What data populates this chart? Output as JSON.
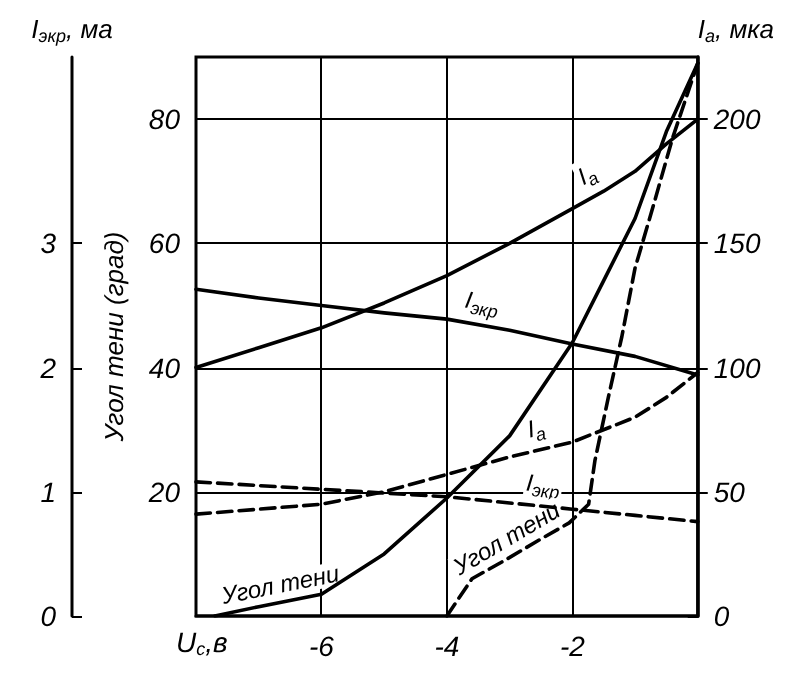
{
  "chart_data": {
    "type": "line",
    "xlabel": "U$_{c}$,в",
    "ylabel": "Угол тени (град)",
    "y2label": "I$_{a}$, мка",
    "y3label": "I$_{экр}$, ма",
    "xlim": [
      -8,
      0
    ],
    "xticks": [
      -6,
      -4,
      -2
    ],
    "ylim": [
      0,
      90
    ],
    "yticks": [
      20,
      40,
      60,
      80
    ],
    "y2lim": [
      0,
      225
    ],
    "y2ticks": [
      0,
      50,
      100,
      150,
      200
    ],
    "y3lim": [
      0,
      4.5
    ],
    "y3ticks": [
      0,
      1,
      2,
      3
    ],
    "grid": true,
    "marker": "none",
    "series": [
      {
        "axis": "y2",
        "color": "#000000",
        "line_style": "solid",
        "x": [
          -8,
          -7,
          -6,
          -5,
          -4,
          -3,
          -2,
          -1.5,
          -1,
          -0.5,
          0
        ],
        "values": [
          100,
          108,
          116,
          126,
          137,
          150,
          164,
          171,
          179,
          190,
          200
        ]
      },
      {
        "axis": "y3",
        "color": "#000000",
        "line_style": "solid",
        "x": [
          -8,
          -7,
          -6,
          -5,
          -4,
          -3,
          -2,
          -1,
          0
        ],
        "values": [
          2.63,
          2.56,
          2.5,
          2.44,
          2.39,
          2.3,
          2.19,
          2.09,
          1.94
        ]
      },
      {
        "color": "#000000",
        "line_style": "solid",
        "x": [
          -7.7,
          -7,
          -6,
          -5,
          -4,
          -3,
          -2,
          -1.5,
          -1,
          -0.5,
          0
        ],
        "values": [
          0,
          1.5,
          3.5,
          10,
          19,
          29,
          44,
          54,
          64,
          78,
          89
        ]
      },
      {
        "axis": "y2",
        "color": "#000000",
        "line_style": "dashed",
        "x": [
          -8,
          -7,
          -6,
          -5,
          -4,
          -3,
          -2,
          -1,
          -0.5,
          0
        ],
        "values": [
          41,
          43,
          45,
          50,
          57,
          64,
          70,
          80,
          88,
          98
        ]
      },
      {
        "axis": "y3",
        "color": "#000000",
        "line_style": "dashed",
        "x": [
          -8,
          -6,
          -4,
          -3,
          -2,
          -1,
          0
        ],
        "values": [
          1.08,
          1.02,
          0.96,
          0.91,
          0.86,
          0.81,
          0.76
        ]
      },
      {
        "color": "#000000",
        "line_style": "dashed",
        "x": [
          -4,
          -3.6,
          -3.07,
          -2.57,
          -2.05,
          -1.74,
          -1.64,
          -1.43,
          -1.21,
          -1,
          -0.71,
          -0.4,
          0
        ],
        "values": [
          0,
          6,
          9,
          12,
          15,
          18,
          25,
          35,
          45,
          56,
          66,
          77,
          89
        ]
      }
    ],
    "annotations": [
      {
        "text": "I$_{a}$",
        "x": -1.6,
        "y": 68
      },
      {
        "text": "I$_{экр}$",
        "x": -3.5,
        "y": 47
      },
      {
        "text": "Угол тени",
        "x": -6.6,
        "y": 2.2
      },
      {
        "text": "I$_{a}$",
        "x": -2.5,
        "y": 26.8
      },
      {
        "text": "I$_{экр}$",
        "x": -2.5,
        "y": 17.7
      },
      {
        "text": "Угол тени",
        "x": -2.9,
        "y": 10
      }
    ]
  }
}
